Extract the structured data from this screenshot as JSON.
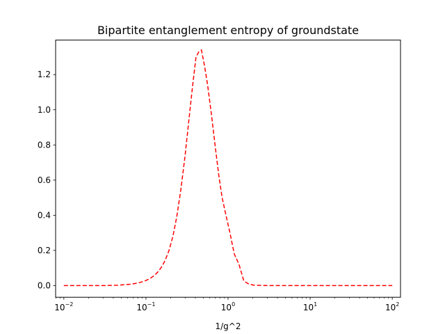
{
  "chart_data": {
    "type": "line",
    "title": "Bipartite entanglement entropy of groundstate",
    "xlabel": "1/g^2",
    "ylabel": "",
    "x_scale": "log",
    "xlim": [
      0.00794,
      126
    ],
    "ylim": [
      -0.0665,
      1.3965
    ],
    "grid": false,
    "line_color": "#ff0000",
    "line_style": "dashed",
    "x_ticks": [
      {
        "value": 0.01,
        "base": "10",
        "exp": "−2"
      },
      {
        "value": 0.1,
        "base": "10",
        "exp": "−1"
      },
      {
        "value": 1,
        "base": "10",
        "exp": "0"
      },
      {
        "value": 10,
        "base": "10",
        "exp": "1"
      },
      {
        "value": 100,
        "base": "10",
        "exp": "2"
      }
    ],
    "y_ticks": [
      {
        "value": 0.0,
        "label": "0.0"
      },
      {
        "value": 0.2,
        "label": "0.2"
      },
      {
        "value": 0.4,
        "label": "0.4"
      },
      {
        "value": 0.6,
        "label": "0.6"
      },
      {
        "value": 0.8,
        "label": "0.8"
      },
      {
        "value": 1.0,
        "label": "1.0"
      },
      {
        "value": 1.2,
        "label": "1.2"
      }
    ],
    "series": [
      {
        "x": [
          0.01,
          0.0146,
          0.0213,
          0.0311,
          0.0454,
          0.0663,
          0.0807,
          0.0968,
          0.112,
          0.127,
          0.142,
          0.157,
          0.172,
          0.191,
          0.213,
          0.237,
          0.266,
          0.299,
          0.334,
          0.373,
          0.407,
          0.441,
          0.474,
          0.517,
          0.564,
          0.625,
          0.694,
          0.77,
          0.847,
          0.943,
          1.049,
          1.19,
          1.36,
          1.56,
          1.77,
          2.06,
          3.0,
          4.4,
          6.4,
          9.4,
          13.7,
          20.0,
          29.3,
          42.8,
          62.6,
          100
        ],
        "y": [
          0.0,
          0.0,
          0.0,
          0.0,
          0.002,
          0.008,
          0.015,
          0.026,
          0.04,
          0.058,
          0.081,
          0.11,
          0.145,
          0.2,
          0.28,
          0.39,
          0.545,
          0.735,
          0.945,
          1.15,
          1.3,
          1.33,
          1.34,
          1.25,
          1.14,
          0.98,
          0.8,
          0.63,
          0.5,
          0.4,
          0.305,
          0.18,
          0.12,
          0.025,
          0.01,
          0.002,
          0.0,
          0.0,
          0.0,
          0.0,
          0.0,
          0.0,
          0.0,
          0.0,
          0.0,
          0.0
        ]
      }
    ]
  }
}
